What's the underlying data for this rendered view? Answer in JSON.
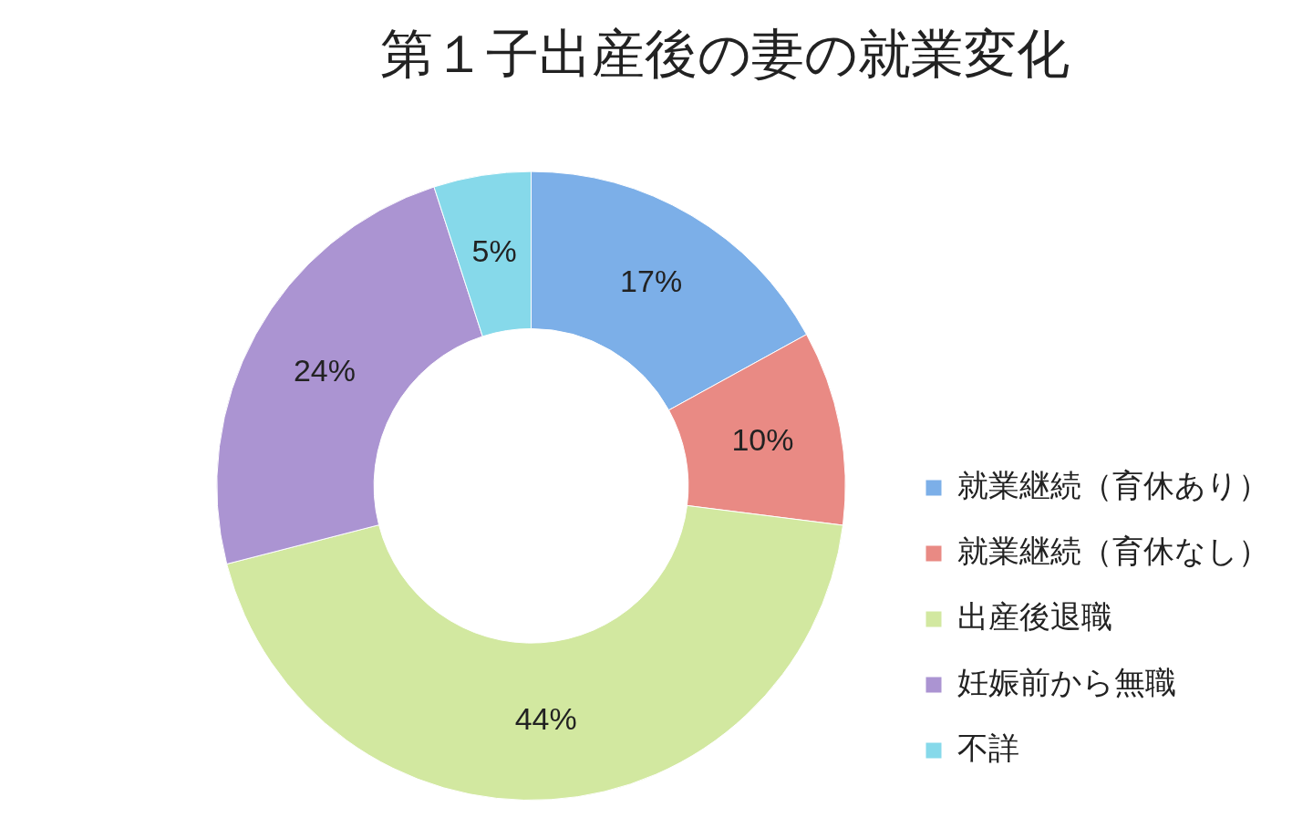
{
  "chart_data": {
    "type": "donut",
    "title": "第１子出産後の妻の就業変化",
    "categories": [
      "就業継続（育休あり）",
      "就業継続（育休なし）",
      "出産後退職",
      "妊娠前から無職",
      "不詳"
    ],
    "values": [
      17,
      10,
      44,
      24,
      5
    ],
    "value_labels": [
      "17%",
      "10%",
      "44%",
      "24%",
      "5%"
    ],
    "colors": [
      "#7cafe8",
      "#e98a84",
      "#d2e8a0",
      "#ab94d2",
      "#86d9ea"
    ],
    "legend": "right"
  }
}
